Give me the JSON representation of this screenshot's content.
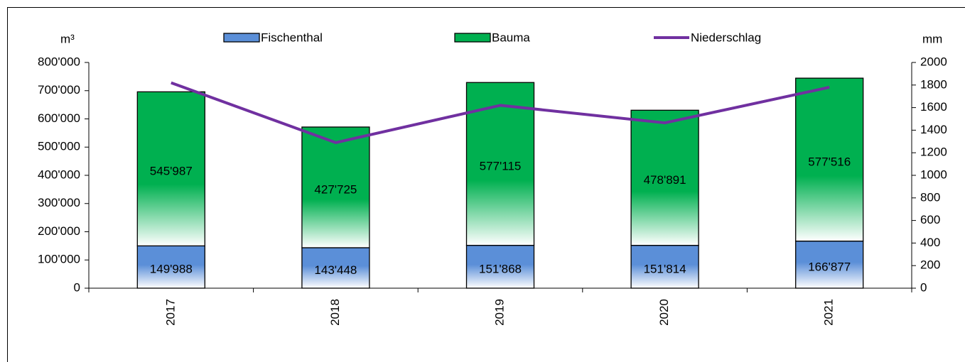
{
  "chart_data": {
    "type": "stacked_bar_line",
    "y_label": "m³",
    "y2_label": "mm",
    "categories": [
      "2017",
      "2018",
      "2019",
      "2020",
      "2021"
    ],
    "series": [
      {
        "name": "Fischenthal",
        "type": "bar",
        "color": "#5b8fd8",
        "values": [
          149988,
          143448,
          151868,
          151814,
          166877
        ],
        "value_labels": [
          "149'988",
          "143'448",
          "151'868",
          "151'814",
          "166'877"
        ]
      },
      {
        "name": "Bauma",
        "type": "bar",
        "color": "#00b050",
        "values": [
          545987,
          427725,
          577115,
          478891,
          577516
        ],
        "value_labels": [
          "545'987",
          "427'725",
          "577'115",
          "478'891",
          "577'516"
        ]
      },
      {
        "name": "Niederschlag",
        "type": "line",
        "axis": "y2",
        "color": "#7030a0",
        "values": [
          1820,
          1290,
          1620,
          1465,
          1780
        ]
      }
    ],
    "ylim": [
      0,
      800000
    ],
    "yticks": [
      0,
      {
        "value": 100000,
        "label": "100'000"
      },
      {
        "value": 200000,
        "label": "200'000"
      },
      {
        "value": 300000,
        "label": "300'000"
      },
      {
        "value": 400000,
        "label": "400'000"
      },
      {
        "value": 500000,
        "label": "500'000"
      },
      {
        "value": 600000,
        "label": "600'000"
      },
      {
        "value": 700000,
        "label": "700'000"
      },
      {
        "value": 800000,
        "label": "800'000"
      }
    ],
    "y2lim": [
      0,
      2000
    ],
    "y2ticks": [
      0,
      200,
      400,
      600,
      800,
      1000,
      1200,
      1400,
      1600,
      1800,
      2000
    ],
    "legend": "top",
    "grid": false
  }
}
